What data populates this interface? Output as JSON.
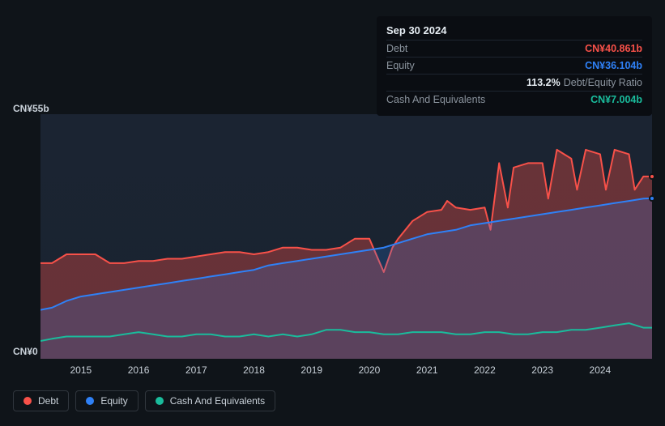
{
  "chart": {
    "type": "area",
    "background_color": "#0f1419",
    "plot_background": "#1b2432",
    "grid_color": "#1e2530",
    "ylim": [
      0,
      55
    ],
    "y_unit_prefix": "CN¥",
    "y_unit_suffix": "b",
    "y_ticks": [
      0,
      55
    ],
    "x_ticks": [
      2015,
      2016,
      2017,
      2018,
      2019,
      2020,
      2021,
      2022,
      2023,
      2024
    ],
    "x_range": [
      2014.3,
      2024.9
    ],
    "series": [
      {
        "id": "debt",
        "label": "Debt",
        "color": "#f85149",
        "fill_opacity": 0.35,
        "stroke_width": 2,
        "points": [
          [
            2014.3,
            21.5
          ],
          [
            2014.5,
            21.5
          ],
          [
            2014.75,
            23.5
          ],
          [
            2015.0,
            23.5
          ],
          [
            2015.25,
            23.5
          ],
          [
            2015.5,
            21.5
          ],
          [
            2015.75,
            21.5
          ],
          [
            2016.0,
            22.0
          ],
          [
            2016.25,
            22.0
          ],
          [
            2016.5,
            22.5
          ],
          [
            2016.75,
            22.5
          ],
          [
            2017.0,
            23.0
          ],
          [
            2017.25,
            23.5
          ],
          [
            2017.5,
            24.0
          ],
          [
            2017.75,
            24.0
          ],
          [
            2018.0,
            23.5
          ],
          [
            2018.25,
            24.0
          ],
          [
            2018.5,
            25.0
          ],
          [
            2018.75,
            25.0
          ],
          [
            2019.0,
            24.5
          ],
          [
            2019.25,
            24.5
          ],
          [
            2019.5,
            25.0
          ],
          [
            2019.75,
            27.0
          ],
          [
            2020.0,
            27.0
          ],
          [
            2020.1,
            24.0
          ],
          [
            2020.25,
            19.5
          ],
          [
            2020.4,
            25.0
          ],
          [
            2020.5,
            27.0
          ],
          [
            2020.75,
            31.0
          ],
          [
            2021.0,
            33.0
          ],
          [
            2021.25,
            33.5
          ],
          [
            2021.35,
            35.5
          ],
          [
            2021.5,
            34.0
          ],
          [
            2021.75,
            33.5
          ],
          [
            2022.0,
            34.0
          ],
          [
            2022.1,
            29.0
          ],
          [
            2022.25,
            44.0
          ],
          [
            2022.4,
            34.0
          ],
          [
            2022.5,
            43.0
          ],
          [
            2022.75,
            44.0
          ],
          [
            2023.0,
            44.0
          ],
          [
            2023.1,
            36.0
          ],
          [
            2023.25,
            47.0
          ],
          [
            2023.5,
            45.0
          ],
          [
            2023.6,
            38.0
          ],
          [
            2023.75,
            47.0
          ],
          [
            2024.0,
            46.0
          ],
          [
            2024.1,
            38.0
          ],
          [
            2024.25,
            47.0
          ],
          [
            2024.5,
            46.0
          ],
          [
            2024.6,
            38.0
          ],
          [
            2024.75,
            41.0
          ],
          [
            2024.9,
            41.0
          ]
        ]
      },
      {
        "id": "equity",
        "label": "Equity",
        "color": "#2f81f7",
        "fill_opacity": 0.2,
        "stroke_width": 2,
        "points": [
          [
            2014.3,
            11.0
          ],
          [
            2014.5,
            11.5
          ],
          [
            2014.75,
            13.0
          ],
          [
            2015.0,
            14.0
          ],
          [
            2015.25,
            14.5
          ],
          [
            2015.5,
            15.0
          ],
          [
            2015.75,
            15.5
          ],
          [
            2016.0,
            16.0
          ],
          [
            2016.25,
            16.5
          ],
          [
            2016.5,
            17.0
          ],
          [
            2016.75,
            17.5
          ],
          [
            2017.0,
            18.0
          ],
          [
            2017.25,
            18.5
          ],
          [
            2017.5,
            19.0
          ],
          [
            2017.75,
            19.5
          ],
          [
            2018.0,
            20.0
          ],
          [
            2018.25,
            21.0
          ],
          [
            2018.5,
            21.5
          ],
          [
            2018.75,
            22.0
          ],
          [
            2019.0,
            22.5
          ],
          [
            2019.25,
            23.0
          ],
          [
            2019.5,
            23.5
          ],
          [
            2019.75,
            24.0
          ],
          [
            2020.0,
            24.5
          ],
          [
            2020.25,
            25.0
          ],
          [
            2020.5,
            26.0
          ],
          [
            2020.75,
            27.0
          ],
          [
            2021.0,
            28.0
          ],
          [
            2021.25,
            28.5
          ],
          [
            2021.5,
            29.0
          ],
          [
            2021.75,
            30.0
          ],
          [
            2022.0,
            30.5
          ],
          [
            2022.25,
            31.0
          ],
          [
            2022.5,
            31.5
          ],
          [
            2022.75,
            32.0
          ],
          [
            2023.0,
            32.5
          ],
          [
            2023.25,
            33.0
          ],
          [
            2023.5,
            33.5
          ],
          [
            2023.75,
            34.0
          ],
          [
            2024.0,
            34.5
          ],
          [
            2024.25,
            35.0
          ],
          [
            2024.5,
            35.5
          ],
          [
            2024.75,
            36.0
          ],
          [
            2024.9,
            36.1
          ]
        ]
      },
      {
        "id": "cash",
        "label": "Cash And Equivalents",
        "color": "#1abc9c",
        "fill_opacity": 0.0,
        "stroke_width": 2,
        "points": [
          [
            2014.3,
            4.0
          ],
          [
            2014.5,
            4.5
          ],
          [
            2014.75,
            5.0
          ],
          [
            2015.0,
            5.0
          ],
          [
            2015.25,
            5.0
          ],
          [
            2015.5,
            5.0
          ],
          [
            2015.75,
            5.5
          ],
          [
            2016.0,
            6.0
          ],
          [
            2016.25,
            5.5
          ],
          [
            2016.5,
            5.0
          ],
          [
            2016.75,
            5.0
          ],
          [
            2017.0,
            5.5
          ],
          [
            2017.25,
            5.5
          ],
          [
            2017.5,
            5.0
          ],
          [
            2017.75,
            5.0
          ],
          [
            2018.0,
            5.5
          ],
          [
            2018.25,
            5.0
          ],
          [
            2018.5,
            5.5
          ],
          [
            2018.75,
            5.0
          ],
          [
            2019.0,
            5.5
          ],
          [
            2019.25,
            6.5
          ],
          [
            2019.5,
            6.5
          ],
          [
            2019.75,
            6.0
          ],
          [
            2020.0,
            6.0
          ],
          [
            2020.25,
            5.5
          ],
          [
            2020.5,
            5.5
          ],
          [
            2020.75,
            6.0
          ],
          [
            2021.0,
            6.0
          ],
          [
            2021.25,
            6.0
          ],
          [
            2021.5,
            5.5
          ],
          [
            2021.75,
            5.5
          ],
          [
            2022.0,
            6.0
          ],
          [
            2022.25,
            6.0
          ],
          [
            2022.5,
            5.5
          ],
          [
            2022.75,
            5.5
          ],
          [
            2023.0,
            6.0
          ],
          [
            2023.25,
            6.0
          ],
          [
            2023.5,
            6.5
          ],
          [
            2023.75,
            6.5
          ],
          [
            2024.0,
            7.0
          ],
          [
            2024.25,
            7.5
          ],
          [
            2024.5,
            8.0
          ],
          [
            2024.75,
            7.0
          ],
          [
            2024.9,
            7.0
          ]
        ]
      }
    ],
    "markers": [
      {
        "series": "debt",
        "x": 2024.9,
        "y": 41.0
      },
      {
        "series": "equity",
        "x": 2024.9,
        "y": 36.1
      }
    ]
  },
  "tooltip": {
    "date": "Sep 30 2024",
    "rows": [
      {
        "key": "Debt",
        "value": "CN¥40.861b",
        "class": "debt"
      },
      {
        "key": "Equity",
        "value": "CN¥36.104b",
        "class": "equity"
      },
      {
        "key": "",
        "pct": "113.2%",
        "ratio_label": "Debt/Equity Ratio",
        "class": "ratio"
      },
      {
        "key": "Cash And Equivalents",
        "value": "CN¥7.004b",
        "class": "cash"
      }
    ]
  },
  "legend": {
    "items": [
      {
        "label": "Debt",
        "color": "#f85149"
      },
      {
        "label": "Equity",
        "color": "#2f81f7"
      },
      {
        "label": "Cash And Equivalents",
        "color": "#1abc9c"
      }
    ]
  },
  "typography": {
    "axis_fontsize": 12,
    "tooltip_fontsize": 12.5,
    "legend_fontsize": 12
  }
}
